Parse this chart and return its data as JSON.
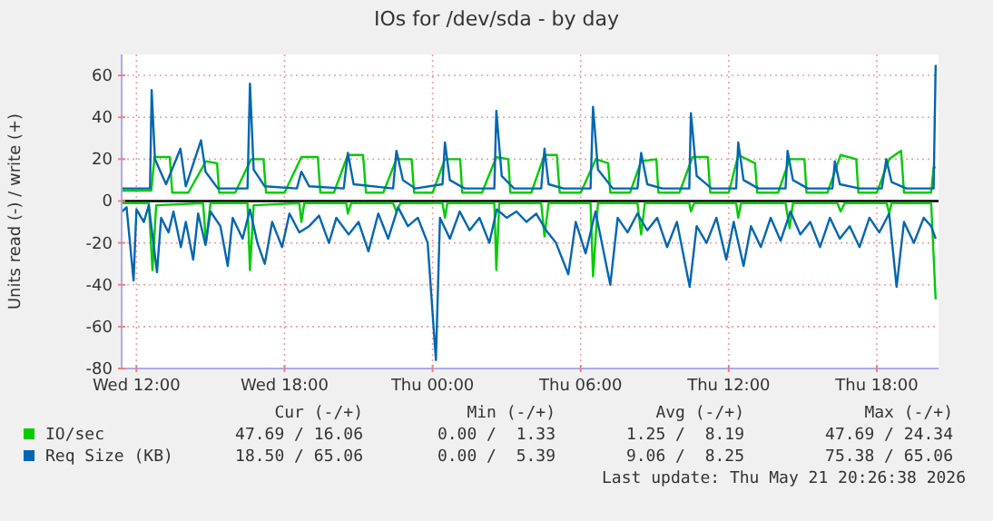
{
  "chart_data": {
    "type": "line",
    "title": "IOs for /dev/sda - by day",
    "ylabel": "Units read (-) / write (+)",
    "xlim": [
      "2026-05-20T11:24",
      "2026-05-21T20:30"
    ],
    "xticks": [
      {
        "value": "2026-05-20T12:00",
        "label": "Wed 12:00"
      },
      {
        "value": "2026-05-20T18:00",
        "label": "Wed 18:00"
      },
      {
        "value": "2026-05-21T00:00",
        "label": "Thu 00:00"
      },
      {
        "value": "2026-05-21T06:00",
        "label": "Thu 06:00"
      },
      {
        "value": "2026-05-21T12:00",
        "label": "Thu 12:00"
      },
      {
        "value": "2026-05-21T18:00",
        "label": "Thu 18:00"
      }
    ],
    "ylim": [
      -80,
      70
    ],
    "yticks": [
      -80,
      -60,
      -40,
      -20,
      0,
      20,
      40,
      60
    ],
    "grid": true,
    "legend": "bottom",
    "ref_lines": [
      {
        "axis": "y",
        "value": 0,
        "color": "#000000"
      }
    ],
    "series": [
      {
        "name": "IO/sec",
        "color": "#00cc00",
        "x": [
          "2026-05-20T11:25",
          "2026-05-20T12:36",
          "2026-05-20T12:44",
          "2026-05-20T13:21",
          "2026-05-20T13:27",
          "2026-05-20T14:06",
          "2026-05-20T14:49",
          "2026-05-20T15:16",
          "2026-05-20T15:21",
          "2026-05-20T16:00",
          "2026-05-20T16:39",
          "2026-05-20T17:09",
          "2026-05-20T17:15",
          "2026-05-20T18:00",
          "2026-05-20T18:41",
          "2026-05-20T19:21",
          "2026-05-20T19:27",
          "2026-05-20T20:00",
          "2026-05-20T20:34",
          "2026-05-20T21:11",
          "2026-05-20T21:18",
          "2026-05-20T22:00",
          "2026-05-20T22:32",
          "2026-05-20T23:09",
          "2026-05-20T23:15",
          "2026-05-21T00:00",
          "2026-05-21T00:30",
          "2026-05-21T01:07",
          "2026-05-21T01:12",
          "2026-05-21T02:00",
          "2026-05-21T02:35",
          "2026-05-21T03:04",
          "2026-05-21T03:09",
          "2026-05-21T04:00",
          "2026-05-21T04:32",
          "2026-05-21T05:02",
          "2026-05-21T05:09",
          "2026-05-21T06:00",
          "2026-05-21T06:37",
          "2026-05-21T07:07",
          "2026-05-21T07:12",
          "2026-05-21T08:00",
          "2026-05-21T08:27",
          "2026-05-21T09:04",
          "2026-05-21T09:09",
          "2026-05-21T10:00",
          "2026-05-21T10:32",
          "2026-05-21T11:09",
          "2026-05-21T11:15",
          "2026-05-21T12:00",
          "2026-05-21T12:23",
          "2026-05-21T13:04",
          "2026-05-21T13:09",
          "2026-05-21T14:00",
          "2026-05-21T14:28",
          "2026-05-21T15:04",
          "2026-05-21T15:09",
          "2026-05-21T16:00",
          "2026-05-21T16:32",
          "2026-05-21T17:10",
          "2026-05-21T17:15",
          "2026-05-21T18:00",
          "2026-05-21T18:30",
          "2026-05-21T18:59",
          "2026-05-21T19:06",
          "2026-05-21T20:12",
          "2026-05-21T20:18",
          "2026-05-21T20:23"
        ],
        "values": [
          5,
          5,
          21,
          21,
          4,
          4,
          19,
          18,
          4,
          4,
          20,
          20,
          4,
          4,
          21,
          21,
          4,
          4,
          22,
          22,
          4,
          4,
          20,
          20,
          4,
          4,
          20,
          20,
          4,
          4,
          21,
          20,
          4,
          4,
          22,
          22,
          4,
          4,
          20,
          18,
          4,
          4,
          19,
          20,
          4,
          4,
          21,
          21,
          4,
          4,
          22,
          18,
          4,
          4,
          20,
          20,
          4,
          4,
          22,
          20,
          4,
          4,
          20,
          24,
          4,
          4,
          16,
          16
        ]
      },
      {
        "name": "Req Size (KB)",
        "color": "#0066b3",
        "x": [
          "2026-05-20T11:25",
          "2026-05-20T12:33",
          "2026-05-20T12:37",
          "2026-05-20T12:45",
          "2026-05-20T13:12",
          "2026-05-20T13:47",
          "2026-05-20T14:00",
          "2026-05-20T14:37",
          "2026-05-20T14:48",
          "2026-05-20T15:18",
          "2026-05-20T16:30",
          "2026-05-20T16:36",
          "2026-05-20T16:45",
          "2026-05-20T17:12",
          "2026-05-20T18:30",
          "2026-05-20T18:41",
          "2026-05-20T19:00",
          "2026-05-20T20:24",
          "2026-05-20T20:34",
          "2026-05-20T20:48",
          "2026-05-20T22:24",
          "2026-05-20T22:32",
          "2026-05-20T22:48",
          "2026-05-20T23:18",
          "2026-05-21T00:24",
          "2026-05-21T00:30",
          "2026-05-21T00:42",
          "2026-05-21T01:18",
          "2026-05-21T02:30",
          "2026-05-21T02:35",
          "2026-05-21T02:48",
          "2026-05-21T03:18",
          "2026-05-21T04:24",
          "2026-05-21T04:32",
          "2026-05-21T04:42",
          "2026-05-21T05:18",
          "2026-05-21T06:24",
          "2026-05-21T06:30",
          "2026-05-21T06:42",
          "2026-05-21T07:18",
          "2026-05-21T08:18",
          "2026-05-21T08:27",
          "2026-05-21T08:42",
          "2026-05-21T09:18",
          "2026-05-21T10:24",
          "2026-05-21T10:28",
          "2026-05-21T10:42",
          "2026-05-21T11:00",
          "2026-05-21T11:18",
          "2026-05-21T12:18",
          "2026-05-21T12:23",
          "2026-05-21T12:36",
          "2026-05-21T13:12",
          "2026-05-21T14:18",
          "2026-05-21T14:23",
          "2026-05-21T14:36",
          "2026-05-21T15:12",
          "2026-05-21T16:12",
          "2026-05-21T16:18",
          "2026-05-21T16:30",
          "2026-05-21T17:18",
          "2026-05-21T18:12",
          "2026-05-21T18:23",
          "2026-05-21T18:36",
          "2026-05-21T19:12",
          "2026-05-21T20:18",
          "2026-05-21T20:23"
        ],
        "values": [
          6,
          6,
          53,
          20,
          8,
          25,
          7,
          29,
          14,
          6,
          6,
          56,
          15,
          7,
          6,
          14,
          7,
          6,
          23,
          8,
          6,
          24,
          10,
          6,
          8,
          28,
          10,
          6,
          6,
          43,
          12,
          6,
          6,
          25,
          8,
          6,
          6,
          45,
          15,
          6,
          6,
          23,
          8,
          6,
          6,
          42,
          12,
          9,
          6,
          6,
          28,
          10,
          6,
          6,
          24,
          10,
          6,
          6,
          19,
          8,
          6,
          6,
          20,
          9,
          6,
          6,
          65
        ]
      },
      {
        "color": "#00cc00",
        "x": [
          "2026-05-20T11:25",
          "2026-05-20T12:30",
          "2026-05-20T12:39",
          "2026-05-20T12:48",
          "2026-05-20T14:42",
          "2026-05-20T14:49",
          "2026-05-20T15:00",
          "2026-05-20T16:30",
          "2026-05-20T16:36",
          "2026-05-20T16:45",
          "2026-05-20T18:36",
          "2026-05-20T18:41",
          "2026-05-20T18:48",
          "2026-05-20T20:30",
          "2026-05-20T20:34",
          "2026-05-20T20:42",
          "2026-05-20T22:24",
          "2026-05-20T22:32",
          "2026-05-20T22:42",
          "2026-05-21T00:24",
          "2026-05-21T00:30",
          "2026-05-21T00:36",
          "2026-05-21T02:30",
          "2026-05-21T02:35",
          "2026-05-21T02:42",
          "2026-05-21T04:24",
          "2026-05-21T04:32",
          "2026-05-21T04:42",
          "2026-05-21T06:24",
          "2026-05-21T06:30",
          "2026-05-21T06:42",
          "2026-05-21T08:18",
          "2026-05-21T08:27",
          "2026-05-21T08:36",
          "2026-05-21T10:24",
          "2026-05-21T10:28",
          "2026-05-21T10:36",
          "2026-05-21T12:18",
          "2026-05-21T12:23",
          "2026-05-21T12:30",
          "2026-05-21T14:18",
          "2026-05-21T14:28",
          "2026-05-21T14:36",
          "2026-05-21T16:24",
          "2026-05-21T16:32",
          "2026-05-21T16:42",
          "2026-05-21T18:24",
          "2026-05-21T18:30",
          "2026-05-21T18:36",
          "2026-05-21T20:12",
          "2026-05-21T20:23"
        ],
        "values": [
          -1,
          -1,
          -33,
          -2,
          -1,
          -20,
          -1,
          -1,
          -33,
          -2,
          -1,
          -10,
          -1,
          -1,
          -6,
          -1,
          -1,
          -5,
          -1,
          -1,
          -8,
          -1,
          -1,
          -33,
          -1,
          -1,
          -17,
          -1,
          -1,
          -36,
          -1,
          -1,
          -16,
          -1,
          -1,
          -5,
          -1,
          -1,
          -8,
          -1,
          -1,
          -13,
          -1,
          -1,
          -5,
          -1,
          -1,
          -6,
          -1,
          -1,
          -47
        ]
      },
      {
        "color": "#0066b3",
        "x": [
          "2026-05-20T11:25",
          "2026-05-20T11:36",
          "2026-05-20T11:53",
          "2026-05-20T12:00",
          "2026-05-20T12:18",
          "2026-05-20T12:30",
          "2026-05-20T12:50",
          "2026-05-20T13:00",
          "2026-05-20T13:18",
          "2026-05-20T13:30",
          "2026-05-20T13:48",
          "2026-05-20T14:00",
          "2026-05-20T14:18",
          "2026-05-20T14:30",
          "2026-05-20T14:48",
          "2026-05-20T15:00",
          "2026-05-20T15:24",
          "2026-05-20T15:42",
          "2026-05-20T15:54",
          "2026-05-20T16:18",
          "2026-05-20T16:36",
          "2026-05-20T16:54",
          "2026-05-20T17:12",
          "2026-05-20T17:30",
          "2026-05-20T17:54",
          "2026-05-20T18:12",
          "2026-05-20T18:36",
          "2026-05-20T19:00",
          "2026-05-20T19:24",
          "2026-05-20T19:48",
          "2026-05-20T20:06",
          "2026-05-20T20:36",
          "2026-05-20T21:00",
          "2026-05-20T21:24",
          "2026-05-20T21:48",
          "2026-05-20T22:12",
          "2026-05-20T22:36",
          "2026-05-20T23:00",
          "2026-05-20T23:24",
          "2026-05-20T23:48",
          "2026-05-21T00:08",
          "2026-05-21T00:18",
          "2026-05-21T00:42",
          "2026-05-21T01:06",
          "2026-05-21T01:30",
          "2026-05-21T01:54",
          "2026-05-21T02:18",
          "2026-05-21T02:36",
          "2026-05-21T03:00",
          "2026-05-21T03:24",
          "2026-05-21T03:48",
          "2026-05-21T04:12",
          "2026-05-21T04:36",
          "2026-05-21T05:00",
          "2026-05-21T05:30",
          "2026-05-21T05:48",
          "2026-05-21T06:12",
          "2026-05-21T06:36",
          "2026-05-21T07:12",
          "2026-05-21T07:30",
          "2026-05-21T07:54",
          "2026-05-21T08:18",
          "2026-05-21T08:42",
          "2026-05-21T09:06",
          "2026-05-21T09:30",
          "2026-05-21T09:54",
          "2026-05-21T10:25",
          "2026-05-21T10:42",
          "2026-05-21T11:06",
          "2026-05-21T11:30",
          "2026-05-21T11:54",
          "2026-05-21T12:12",
          "2026-05-21T12:36",
          "2026-05-21T12:54",
          "2026-05-21T13:18",
          "2026-05-21T13:42",
          "2026-05-21T14:06",
          "2026-05-21T14:30",
          "2026-05-21T14:54",
          "2026-05-21T15:18",
          "2026-05-21T15:42",
          "2026-05-21T16:06",
          "2026-05-21T16:30",
          "2026-05-21T16:54",
          "2026-05-21T17:18",
          "2026-05-21T17:42",
          "2026-05-21T18:06",
          "2026-05-21T18:30",
          "2026-05-21T18:48",
          "2026-05-21T19:06",
          "2026-05-21T19:30",
          "2026-05-21T19:54",
          "2026-05-21T20:12",
          "2026-05-21T20:23"
        ],
        "values": [
          -5,
          -3,
          -38,
          -4,
          -10,
          -2,
          -34,
          -8,
          -15,
          -5,
          -22,
          -10,
          -28,
          -6,
          -21,
          -5,
          -12,
          -31,
          -8,
          -18,
          -4,
          -20,
          -30,
          -10,
          -22,
          -6,
          -15,
          -12,
          -7,
          -20,
          -8,
          -16,
          -10,
          -24,
          -6,
          -18,
          -3,
          -12,
          -8,
          -20,
          -76,
          -8,
          -18,
          -5,
          -14,
          -8,
          -20,
          -4,
          -8,
          -5,
          -10,
          -6,
          -14,
          -20,
          -35,
          -10,
          -25,
          -5,
          -40,
          -8,
          -15,
          -6,
          -14,
          -8,
          -22,
          -10,
          -41,
          -12,
          -20,
          -8,
          -28,
          -10,
          -31,
          -12,
          -22,
          -8,
          -19,
          -5,
          -16,
          -10,
          -22,
          -8,
          -18,
          -12,
          -22,
          -8,
          -15,
          -6,
          -41,
          -10,
          -20,
          -8,
          -12,
          -18
        ]
      }
    ],
    "annotations": [
      "Cur (-/+)",
      "Min (-/+)",
      "Avg (-/+)",
      "Max (-/+)",
      "47.69 / 16.06",
      "0.00 /  1.33",
      "1.25 /  8.19",
      "47.69 / 24.34",
      "18.50 / 65.06",
      "0.00 /  5.39",
      "9.06 /  8.25",
      "75.38 / 65.06",
      "Last update: Thu May 21 20:26:38 2026"
    ]
  }
}
